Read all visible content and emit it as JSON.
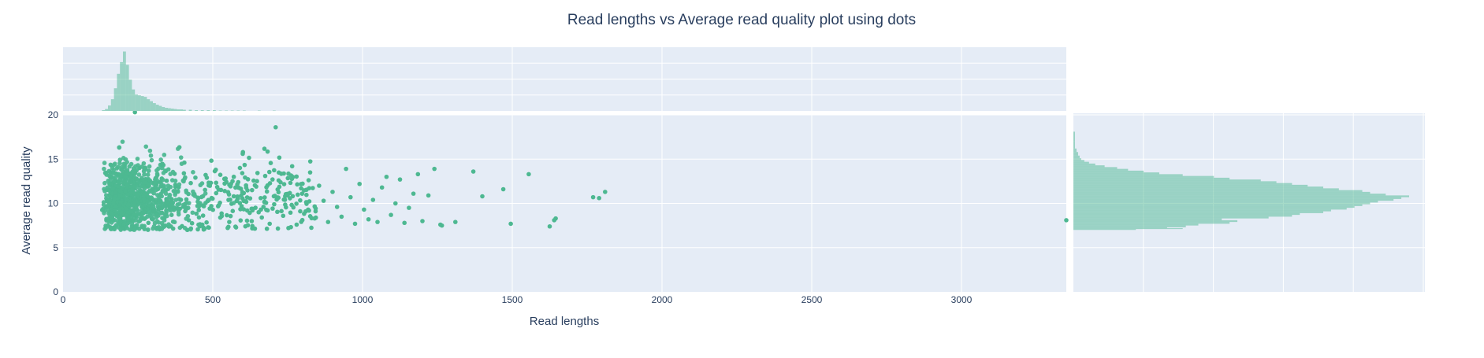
{
  "chart_data": {
    "type": "scatter",
    "title": "Read lengths vs Average read quality plot using dots",
    "xlabel": "Read lengths",
    "ylabel": "Average read quality",
    "xlim": [
      0,
      3350
    ],
    "ylim": [
      0,
      20
    ],
    "x_ticks": [
      0,
      500,
      1000,
      1500,
      2000,
      2500,
      3000
    ],
    "y_ticks": [
      0,
      5,
      10,
      15,
      20
    ],
    "grid": true,
    "colors": {
      "marker": "#4db891",
      "histogram": "#4db891",
      "plot_bg": "#e5ecf6",
      "grid": "#ffffff",
      "text": "#2a3f5f"
    },
    "marginal_x": {
      "type": "histogram",
      "bin_width": 10,
      "bin_starts": [
        130,
        140,
        150,
        160,
        170,
        180,
        190,
        200,
        210,
        220,
        230,
        240,
        250,
        260,
        270,
        280,
        290,
        300,
        310,
        320,
        330,
        340,
        350,
        360,
        370,
        380,
        390,
        400,
        420,
        440,
        460,
        480,
        500,
        520,
        540,
        560,
        580,
        600,
        650,
        700
      ],
      "counts": [
        2,
        5,
        14,
        30,
        58,
        95,
        125,
        152,
        118,
        80,
        55,
        42,
        40,
        38,
        36,
        30,
        25,
        20,
        16,
        13,
        10,
        8,
        7,
        6,
        5,
        4,
        4,
        3,
        3,
        2,
        2,
        2,
        2,
        1,
        1,
        1,
        1,
        1,
        1,
        1
      ],
      "max_count": 155
    },
    "marginal_y": {
      "type": "histogram",
      "bin_width": 0.1,
      "bin_starts": [
        7.0,
        7.1,
        7.2,
        7.3,
        7.5,
        7.7,
        7.9,
        8.1,
        8.3,
        8.5,
        8.7,
        8.9,
        9.1,
        9.3,
        9.5,
        9.7,
        9.9,
        10.1,
        10.3,
        10.5,
        10.7,
        10.9,
        11.1,
        11.3,
        11.5,
        11.7,
        11.9,
        12.1,
        12.3,
        12.5,
        12.7,
        12.9,
        13.1,
        13.3,
        13.5,
        13.7,
        13.9,
        14.1,
        14.3,
        14.5,
        14.7,
        14.9,
        15.1,
        15.4,
        15.8,
        16.2,
        17,
        18
      ],
      "counts": [
        40,
        70,
        60,
        72,
        80,
        100,
        105,
        95,
        125,
        140,
        145,
        160,
        165,
        175,
        180,
        185,
        190,
        195,
        205,
        210,
        215,
        200,
        190,
        185,
        170,
        160,
        150,
        140,
        130,
        120,
        100,
        90,
        70,
        55,
        45,
        35,
        28,
        20,
        14,
        10,
        7,
        5,
        4,
        3,
        2,
        1,
        1,
        1
      ],
      "max_count": 215
    },
    "points": [
      [
        150,
        7.5
      ],
      [
        175,
        11.2
      ],
      [
        190,
        9.8
      ],
      [
        200,
        7.2
      ],
      [
        215,
        8.3
      ],
      [
        225,
        12.5
      ],
      [
        240,
        10.1
      ],
      [
        255,
        14.0
      ],
      [
        270,
        9.0
      ],
      [
        285,
        7.8
      ],
      [
        300,
        11.6
      ],
      [
        315,
        13.2
      ],
      [
        330,
        8.9
      ],
      [
        345,
        10.5
      ],
      [
        360,
        7.4
      ],
      [
        375,
        12.1
      ],
      [
        390,
        9.4
      ],
      [
        405,
        14.6
      ],
      [
        420,
        8.1
      ],
      [
        435,
        11.0
      ],
      [
        450,
        10.2
      ],
      [
        465,
        7.6
      ],
      [
        480,
        12.9
      ],
      [
        495,
        9.7
      ],
      [
        510,
        13.8
      ],
      [
        525,
        8.4
      ],
      [
        540,
        11.4
      ],
      [
        555,
        7.9
      ],
      [
        570,
        10.8
      ],
      [
        585,
        12.4
      ],
      [
        600,
        15.6
      ],
      [
        615,
        9.2
      ],
      [
        630,
        8.0
      ],
      [
        645,
        11.9
      ],
      [
        660,
        10.6
      ],
      [
        675,
        13.1
      ],
      [
        690,
        7.7
      ],
      [
        705,
        9.9
      ],
      [
        710,
        18.6
      ],
      [
        720,
        12.6
      ],
      [
        735,
        8.6
      ],
      [
        750,
        10.9
      ],
      [
        765,
        14.2
      ],
      [
        780,
        7.6
      ],
      [
        795,
        11.7
      ],
      [
        810,
        9.1
      ],
      [
        825,
        13.5
      ],
      [
        840,
        8.3
      ],
      [
        855,
        12.0
      ],
      [
        870,
        10.3
      ],
      [
        885,
        7.9
      ],
      [
        900,
        11.3
      ],
      [
        915,
        9.6
      ],
      [
        930,
        8.5
      ],
      [
        945,
        13.9
      ],
      [
        960,
        10.7
      ],
      [
        975,
        7.7
      ],
      [
        990,
        12.2
      ],
      [
        1005,
        9.3
      ],
      [
        1020,
        8.2
      ],
      [
        1035,
        10.4
      ],
      [
        1050,
        7.9
      ],
      [
        1065,
        11.8
      ],
      [
        1080,
        13.0
      ],
      [
        1095,
        8.7
      ],
      [
        1110,
        10.0
      ],
      [
        1125,
        12.7
      ],
      [
        1140,
        7.8
      ],
      [
        1155,
        9.5
      ],
      [
        1170,
        11.1
      ],
      [
        1185,
        13.3
      ],
      [
        1200,
        8.0
      ],
      [
        1220,
        10.9
      ],
      [
        1240,
        13.9
      ],
      [
        1260,
        7.6
      ],
      [
        1265,
        7.5
      ],
      [
        1310,
        7.9
      ],
      [
        1370,
        13.6
      ],
      [
        1400,
        10.8
      ],
      [
        1470,
        11.6
      ],
      [
        1495,
        7.7
      ],
      [
        1555,
        13.3
      ],
      [
        1625,
        7.4
      ],
      [
        1640,
        8.1
      ],
      [
        1645,
        8.3
      ],
      [
        1770,
        10.7
      ],
      [
        1790,
        10.6
      ],
      [
        1810,
        11.3
      ],
      [
        3350,
        8.1
      ],
      [
        240,
        20.3
      ]
    ]
  }
}
